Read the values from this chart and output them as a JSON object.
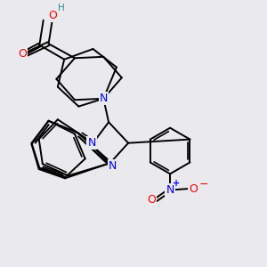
{
  "bg_color": "#eaeaee",
  "atom_colors": {
    "C": "#000000",
    "N": "#0000ff",
    "O": "#ff0000",
    "H": "#2e8b8b"
  },
  "bond_color": "#000000",
  "bond_width": 1.4,
  "figsize": [
    3.0,
    3.0
  ],
  "dpi": 100
}
